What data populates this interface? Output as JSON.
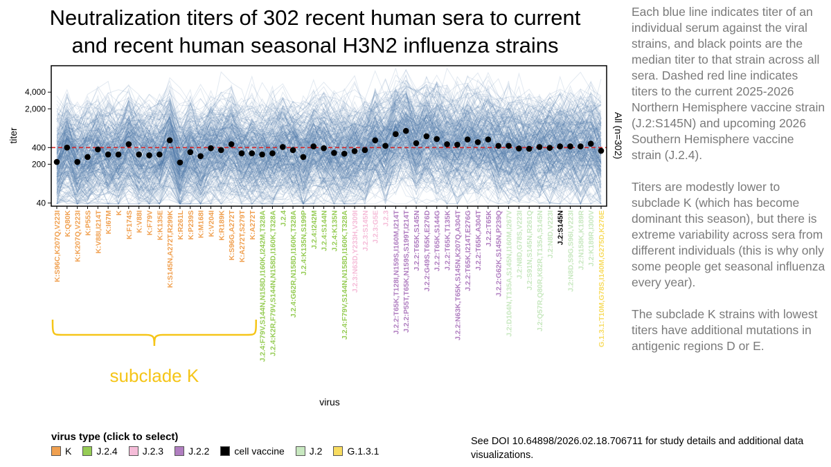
{
  "title_lines": [
    "Neutralization titers of 302 recent human sera to current",
    "and recent human seasonal H3N2 influenza strains"
  ],
  "caption_paragraphs": [
    "Each blue line indicates titer of an individual serum against the viral strains, and black points are the median titer to that strain across all sera. Dashed red line indicates titers to the current 2025-2026 Northern Hemisphere vaccine strain (J.2:S145N) and upcoming 2026 Southern Hemisphere vaccine strain (J.2.4).",
    "Titers are modestly lower to subclade K (which has become dominant this season), but there is extreme variability across sera from different individuals (this is why only some people get seasonal influenza every year).",
    "The subclade K strains with lowest titers have additional mutations in antigenic regions D or E."
  ],
  "footnote": "See DOI 10.64898/2026.02.18.706711 for study details and additional data visualizations.",
  "legend": {
    "title": "virus type (click to select)",
    "items": [
      {
        "label": "K",
        "color": "#f0a050"
      },
      {
        "label": "J.2.4",
        "color": "#96cc55"
      },
      {
        "label": "J.2.3",
        "color": "#f5bcd8"
      },
      {
        "label": "J.2.2",
        "color": "#b07ec0"
      },
      {
        "label": "cell vaccine",
        "color": "#000000"
      },
      {
        "label": "J.2",
        "color": "#c8e8c0"
      },
      {
        "label": "G.1.3.1",
        "color": "#f8dc60"
      }
    ]
  },
  "annotation": {
    "label": "subclade K",
    "color": "#f5c518"
  },
  "chart_data": {
    "type": "line",
    "xlabel": "virus",
    "ylabel": "titer",
    "y_scale": "log",
    "ylim": [
      35,
      12000
    ],
    "yticks": [
      40,
      200,
      400,
      2000,
      4000
    ],
    "ytick_labels": [
      "40",
      "200",
      "400",
      "2,000",
      "4,000"
    ],
    "right_label": "All (n=302)",
    "reference_line": {
      "value": 400,
      "style": "dashed",
      "color": "#d62728"
    },
    "series_color": "#4a78aa",
    "median_color": "#000000",
    "n_sera": 302,
    "categories": [
      {
        "label": "K:S96C,K207Q,V223I",
        "type": "K",
        "median": 220
      },
      {
        "label": "K:Q80K",
        "type": "K",
        "median": 400
      },
      {
        "label": "K:K207Q,V223I",
        "type": "K",
        "median": 220
      },
      {
        "label": "K:P55S",
        "type": "K",
        "median": 270
      },
      {
        "label": "K:V88I,I214T",
        "type": "K",
        "median": 370
      },
      {
        "label": "K:I67M",
        "type": "K",
        "median": 300
      },
      {
        "label": "K",
        "type": "K",
        "median": 300
      },
      {
        "label": "K:F174S",
        "type": "K",
        "median": 460
      },
      {
        "label": "K:V88I",
        "type": "K",
        "median": 300
      },
      {
        "label": "K:F79V",
        "type": "K",
        "median": 290
      },
      {
        "label": "K:K135E",
        "type": "K",
        "median": 300
      },
      {
        "label": "K:S145N,A272T,R299K",
        "type": "K",
        "median": 540
      },
      {
        "label": "K:R261L",
        "type": "K",
        "median": 215
      },
      {
        "label": "K:P239S",
        "type": "K",
        "median": 330
      },
      {
        "label": "K:M168I",
        "type": "K",
        "median": 280
      },
      {
        "label": "K:V204I",
        "type": "K",
        "median": 390
      },
      {
        "label": "K:R189K",
        "type": "K",
        "median": 360
      },
      {
        "label": "K:S96G,A272T",
        "type": "K",
        "median": 460
      },
      {
        "label": "K:A272T,S279T",
        "type": "K",
        "median": 315
      },
      {
        "label": "K:A272T",
        "type": "K",
        "median": 315
      },
      {
        "label": "J.2.4:F79V,S144N,N158D,I160K,I242M,T328A",
        "type": "J.2.4",
        "median": 300
      },
      {
        "label": "J.2.4:K2R,F79V,S144N,N158D,I160K,T328A",
        "type": "J.2.4",
        "median": 315
      },
      {
        "label": "J.2.4",
        "type": "J.2.4",
        "median": 410
      },
      {
        "label": "J.2.4:G62R,N158D,I160K,T328A",
        "type": "J.2.4",
        "median": 360
      },
      {
        "label": "J.2.4:K135N,S199P",
        "type": "J.2.4",
        "median": 270
      },
      {
        "label": "J.2.4:I242M",
        "type": "J.2.4",
        "median": 420
      },
      {
        "label": "J.2.4:S144N",
        "type": "J.2.4",
        "median": 390
      },
      {
        "label": "J.2.4:K135N",
        "type": "J.2.4",
        "median": 320
      },
      {
        "label": "J.2.4:F79V,S144N,N158D,I160K,T328A",
        "type": "J.2.4",
        "median": 310
      },
      {
        "label": "J.2.3:N63D,Y233H,V309I",
        "type": "J.2.3",
        "median": 345
      },
      {
        "label": "J.2.3:S145N",
        "type": "J.2.3",
        "median": 360
      },
      {
        "label": "J.2.3:G5E",
        "type": "J.2.3",
        "median": 540
      },
      {
        "label": "J.2.3",
        "type": "J.2.3",
        "median": 430
      },
      {
        "label": "J.2.2:T65K,T128I,N159S,I160M,I214T",
        "type": "J.2.2",
        "median": 700
      },
      {
        "label": "J.2.2:P55T,T65K,N159S,S199T,I214T",
        "type": "J.2.2",
        "median": 800
      },
      {
        "label": "J.2.2:T65K,S145N",
        "type": "J.2.2",
        "median": 480
      },
      {
        "label": "J.2.2:G49S,T65K,E276D",
        "type": "J.2.2",
        "median": 640
      },
      {
        "label": "J.2.2:T65K,S144G",
        "type": "J.2.2",
        "median": 570
      },
      {
        "label": "J.2.2:T65K,T135K",
        "type": "J.2.2",
        "median": 460
      },
      {
        "label": "J.2.2:N63K,T65K,S145N,K207Q,A304T",
        "type": "J.2.2",
        "median": 450
      },
      {
        "label": "J.2.2:T65K,I214T,E276G",
        "type": "J.2.2",
        "median": 560
      },
      {
        "label": "J.2.2:T65K,A304T",
        "type": "J.2.2",
        "median": 500
      },
      {
        "label": "J.2.2:T65K",
        "type": "J.2.2",
        "median": 560
      },
      {
        "label": "J.2.2:G62K,S145N,P239Q",
        "type": "J.2.2",
        "median": 430
      },
      {
        "label": "J.2:D104N,T135A,S145N,I160M,I267V",
        "type": "J.2",
        "median": 430
      },
      {
        "label": "J.2:N8D,G78S,V223I",
        "type": "J.2",
        "median": 385
      },
      {
        "label": "J.2:S91N,S145N,R261Q",
        "type": "J.2",
        "median": 380
      },
      {
        "label": "J.2:Q57R,Q80R,K82R,T135A,S145N",
        "type": "J.2",
        "median": 410
      },
      {
        "label": "J.2:N8D,V223I",
        "type": "J.2",
        "median": 395
      },
      {
        "label": "J.2:S145N",
        "type": "cell vaccine",
        "median": 420
      },
      {
        "label": "J.2:N8D,S9G,S96I,V223I",
        "type": "J.2",
        "median": 420
      },
      {
        "label": "J.2:N158K,K189R",
        "type": "J.2",
        "median": 420
      },
      {
        "label": "J.2:K189R,I300V",
        "type": "J.2",
        "median": 470
      },
      {
        "label": "G.1.3.1:T10M,G78S,I140M,G275D,K276E",
        "type": "G.1.3.1",
        "median": 350
      }
    ]
  }
}
